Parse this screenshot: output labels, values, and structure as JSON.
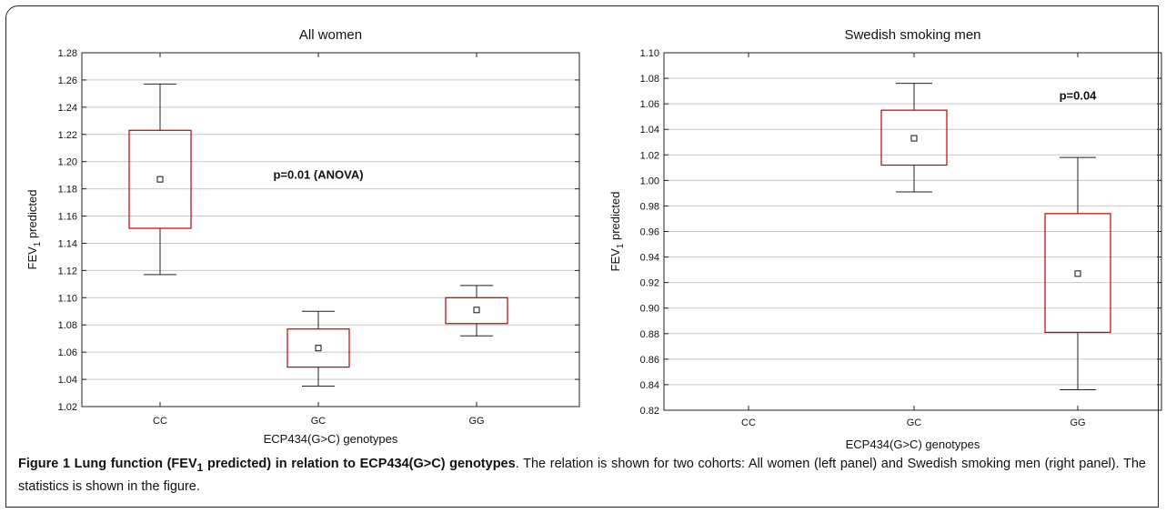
{
  "chart_data": [
    {
      "type": "box",
      "title": "All women",
      "xlabel": "ECP434(G>C) genotypes",
      "ylabel": "FEV",
      "ylabel_sub": "1",
      "ylabel_suffix": " predicted",
      "categories": [
        "CC",
        "GC",
        "GG"
      ],
      "ylim": [
        1.02,
        1.28
      ],
      "yticks": [
        "1.02",
        "1.04",
        "1.06",
        "1.08",
        "1.10",
        "1.12",
        "1.14",
        "1.16",
        "1.18",
        "1.20",
        "1.22",
        "1.24",
        "1.26",
        "1.28"
      ],
      "boxes": [
        {
          "category": "CC",
          "whisker_low": 1.117,
          "q1": 1.151,
          "mean": 1.187,
          "q3": 1.223,
          "whisker_high": 1.257,
          "color": "#c00000"
        },
        {
          "category": "GC",
          "whisker_low": 1.035,
          "q1": 1.049,
          "mean": 1.063,
          "q3": 1.077,
          "whisker_high": 1.09,
          "color": "#c00000"
        },
        {
          "category": "GG",
          "whisker_low": 1.072,
          "q1": 1.081,
          "mean": 1.091,
          "q3": 1.1,
          "whisker_high": 1.109,
          "color": "#c00000"
        }
      ],
      "annotation": {
        "text": "p=0.01 (ANOVA)",
        "category": "GC",
        "y": 1.19
      },
      "grid": true
    },
    {
      "type": "box",
      "title": "Swedish smoking men",
      "xlabel": "ECP434(G>C) genotypes",
      "ylabel": "FEV",
      "ylabel_sub": "1",
      "ylabel_suffix": " predicted",
      "categories": [
        "CC",
        "GC",
        "GG"
      ],
      "ylim": [
        0.82,
        1.1
      ],
      "yticks": [
        "0.82",
        "0.84",
        "0.86",
        "0.88",
        "0.90",
        "0.92",
        "0.94",
        "0.96",
        "0.98",
        "1.00",
        "1.02",
        "1.04",
        "1.06",
        "1.08",
        "1.10"
      ],
      "boxes": [
        {
          "category": "GC",
          "whisker_low": 0.991,
          "q1": 1.012,
          "mean": 1.033,
          "q3": 1.055,
          "whisker_high": 1.076,
          "color": "#c00000"
        },
        {
          "category": "GG",
          "whisker_low": 0.836,
          "q1": 0.881,
          "mean": 0.927,
          "q3": 0.974,
          "whisker_high": 1.018,
          "color": "#c00000"
        }
      ],
      "annotation": {
        "text": "p=0.04",
        "category": "GG",
        "y": 1.066
      },
      "grid": true
    }
  ],
  "caption": {
    "title_a": "Figure 1 Lung function (FEV",
    "title_sub": "1",
    "title_b": " predicted) in relation to ECP434(G>C) genotypes",
    "text": ". The relation is shown for two cohorts: All women (left panel) and Swedish smoking men (right panel). The statistics is shown in the figure."
  }
}
